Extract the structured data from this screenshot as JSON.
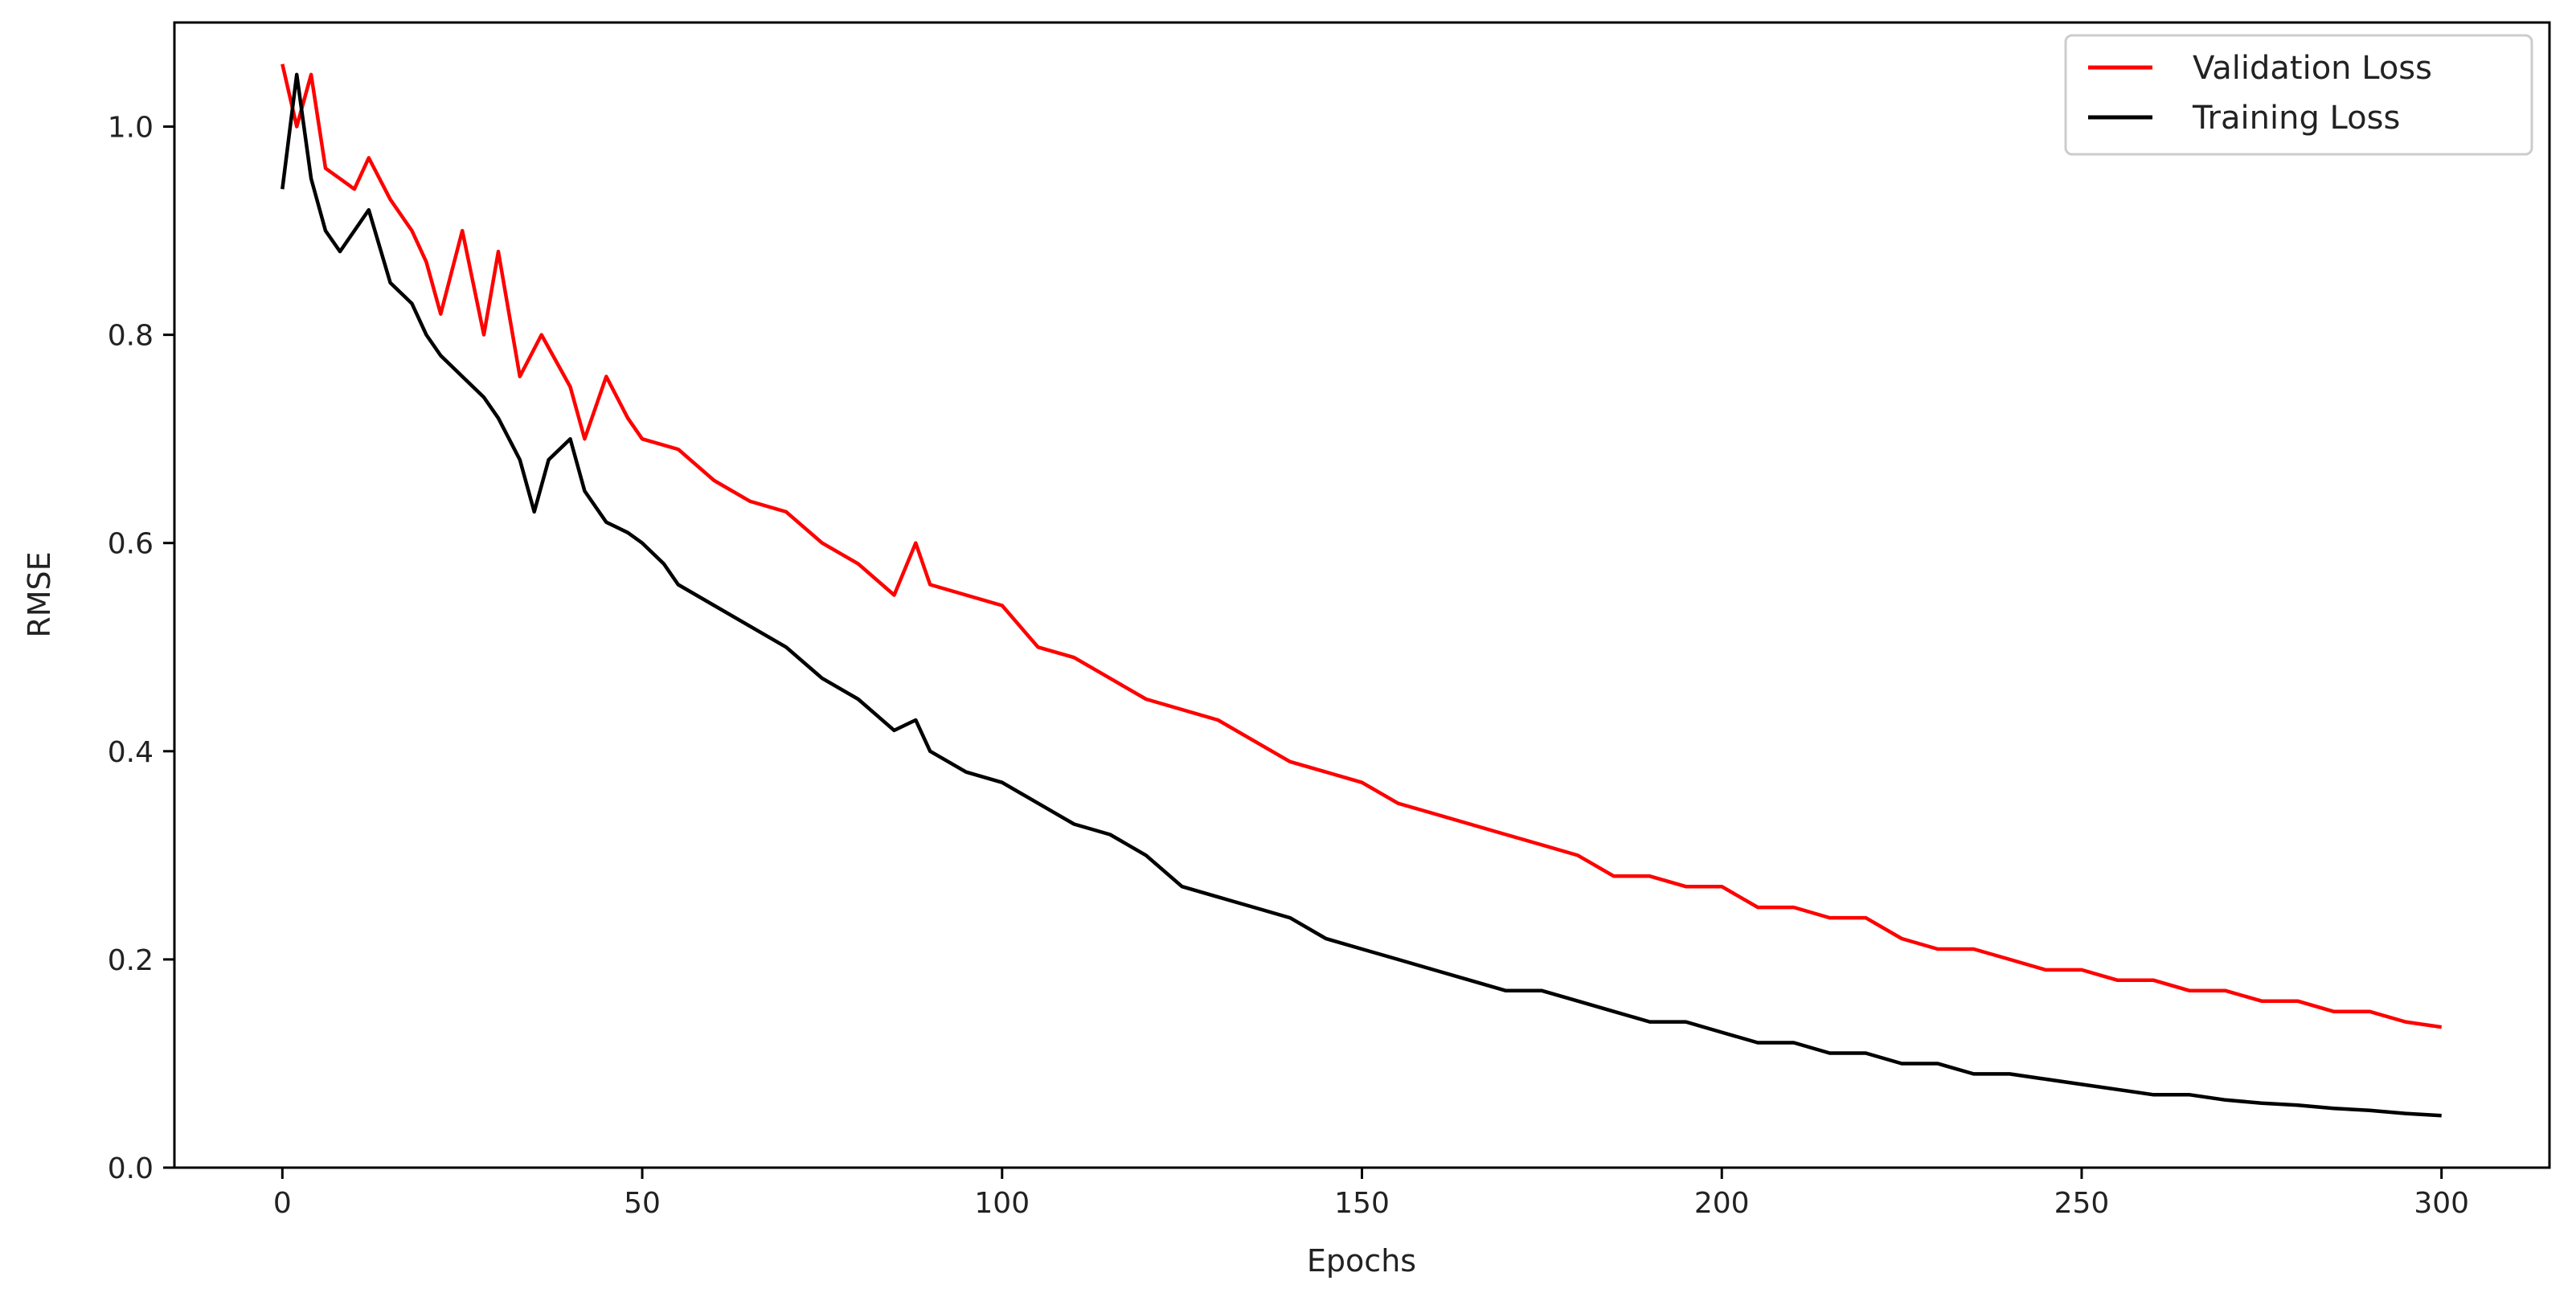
{
  "chart_data": {
    "type": "line",
    "title": "",
    "xlabel": "Epochs",
    "ylabel": "RMSE",
    "xlim": [
      -15,
      315
    ],
    "ylim": [
      0,
      1.1
    ],
    "xticks": [
      0,
      50,
      100,
      150,
      200,
      250,
      300
    ],
    "yticks": [
      0.0,
      0.2,
      0.4,
      0.6,
      0.8,
      1.0
    ],
    "xtick_labels": [
      "0",
      "50",
      "100",
      "150",
      "200",
      "250",
      "300"
    ],
    "ytick_labels": [
      "0.0",
      "0.2",
      "0.4",
      "0.6",
      "0.8",
      "1.0"
    ],
    "grid": false,
    "legend": {
      "placement": "top-right"
    },
    "series": [
      {
        "name": "Validation Loss",
        "color": "#ff0000",
        "x": [
          0,
          2,
          4,
          6,
          8,
          10,
          12,
          15,
          18,
          20,
          22,
          25,
          28,
          30,
          33,
          36,
          40,
          42,
          45,
          48,
          50,
          55,
          60,
          65,
          70,
          75,
          80,
          85,
          88,
          90,
          95,
          100,
          105,
          110,
          115,
          120,
          125,
          130,
          135,
          140,
          145,
          150,
          155,
          160,
          165,
          170,
          175,
          180,
          185,
          190,
          195,
          200,
          205,
          210,
          215,
          220,
          225,
          230,
          235,
          240,
          245,
          250,
          255,
          260,
          265,
          270,
          275,
          280,
          285,
          290,
          295,
          300
        ],
        "y": [
          1.06,
          1.0,
          1.05,
          0.96,
          0.95,
          0.94,
          0.97,
          0.93,
          0.9,
          0.87,
          0.82,
          0.9,
          0.8,
          0.88,
          0.76,
          0.8,
          0.75,
          0.7,
          0.76,
          0.72,
          0.7,
          0.69,
          0.66,
          0.64,
          0.63,
          0.6,
          0.58,
          0.55,
          0.6,
          0.56,
          0.55,
          0.54,
          0.5,
          0.49,
          0.47,
          0.45,
          0.44,
          0.43,
          0.41,
          0.39,
          0.38,
          0.37,
          0.35,
          0.34,
          0.33,
          0.32,
          0.31,
          0.3,
          0.28,
          0.28,
          0.27,
          0.27,
          0.25,
          0.25,
          0.24,
          0.24,
          0.22,
          0.21,
          0.21,
          0.2,
          0.19,
          0.19,
          0.18,
          0.18,
          0.17,
          0.17,
          0.16,
          0.16,
          0.15,
          0.15,
          0.14,
          0.135
        ]
      },
      {
        "name": "Training Loss",
        "color": "#000000",
        "x": [
          0,
          2,
          4,
          6,
          8,
          10,
          12,
          15,
          18,
          20,
          22,
          25,
          28,
          30,
          33,
          35,
          37,
          40,
          42,
          45,
          48,
          50,
          53,
          55,
          60,
          65,
          70,
          75,
          80,
          85,
          88,
          90,
          95,
          100,
          105,
          110,
          115,
          120,
          125,
          130,
          135,
          140,
          145,
          150,
          155,
          160,
          165,
          170,
          175,
          180,
          185,
          190,
          195,
          200,
          205,
          210,
          215,
          220,
          225,
          230,
          235,
          240,
          245,
          250,
          255,
          260,
          265,
          270,
          275,
          280,
          285,
          290,
          295,
          300
        ],
        "y": [
          0.94,
          1.05,
          0.95,
          0.9,
          0.88,
          0.9,
          0.92,
          0.85,
          0.83,
          0.8,
          0.78,
          0.76,
          0.74,
          0.72,
          0.68,
          0.63,
          0.68,
          0.7,
          0.65,
          0.62,
          0.61,
          0.6,
          0.58,
          0.56,
          0.54,
          0.52,
          0.5,
          0.47,
          0.45,
          0.42,
          0.43,
          0.4,
          0.38,
          0.37,
          0.35,
          0.33,
          0.32,
          0.3,
          0.27,
          0.26,
          0.25,
          0.24,
          0.22,
          0.21,
          0.2,
          0.19,
          0.18,
          0.17,
          0.17,
          0.16,
          0.15,
          0.14,
          0.14,
          0.13,
          0.12,
          0.12,
          0.11,
          0.11,
          0.1,
          0.1,
          0.09,
          0.09,
          0.085,
          0.08,
          0.075,
          0.07,
          0.07,
          0.065,
          0.062,
          0.06,
          0.057,
          0.055,
          0.052,
          0.05
        ]
      }
    ]
  }
}
